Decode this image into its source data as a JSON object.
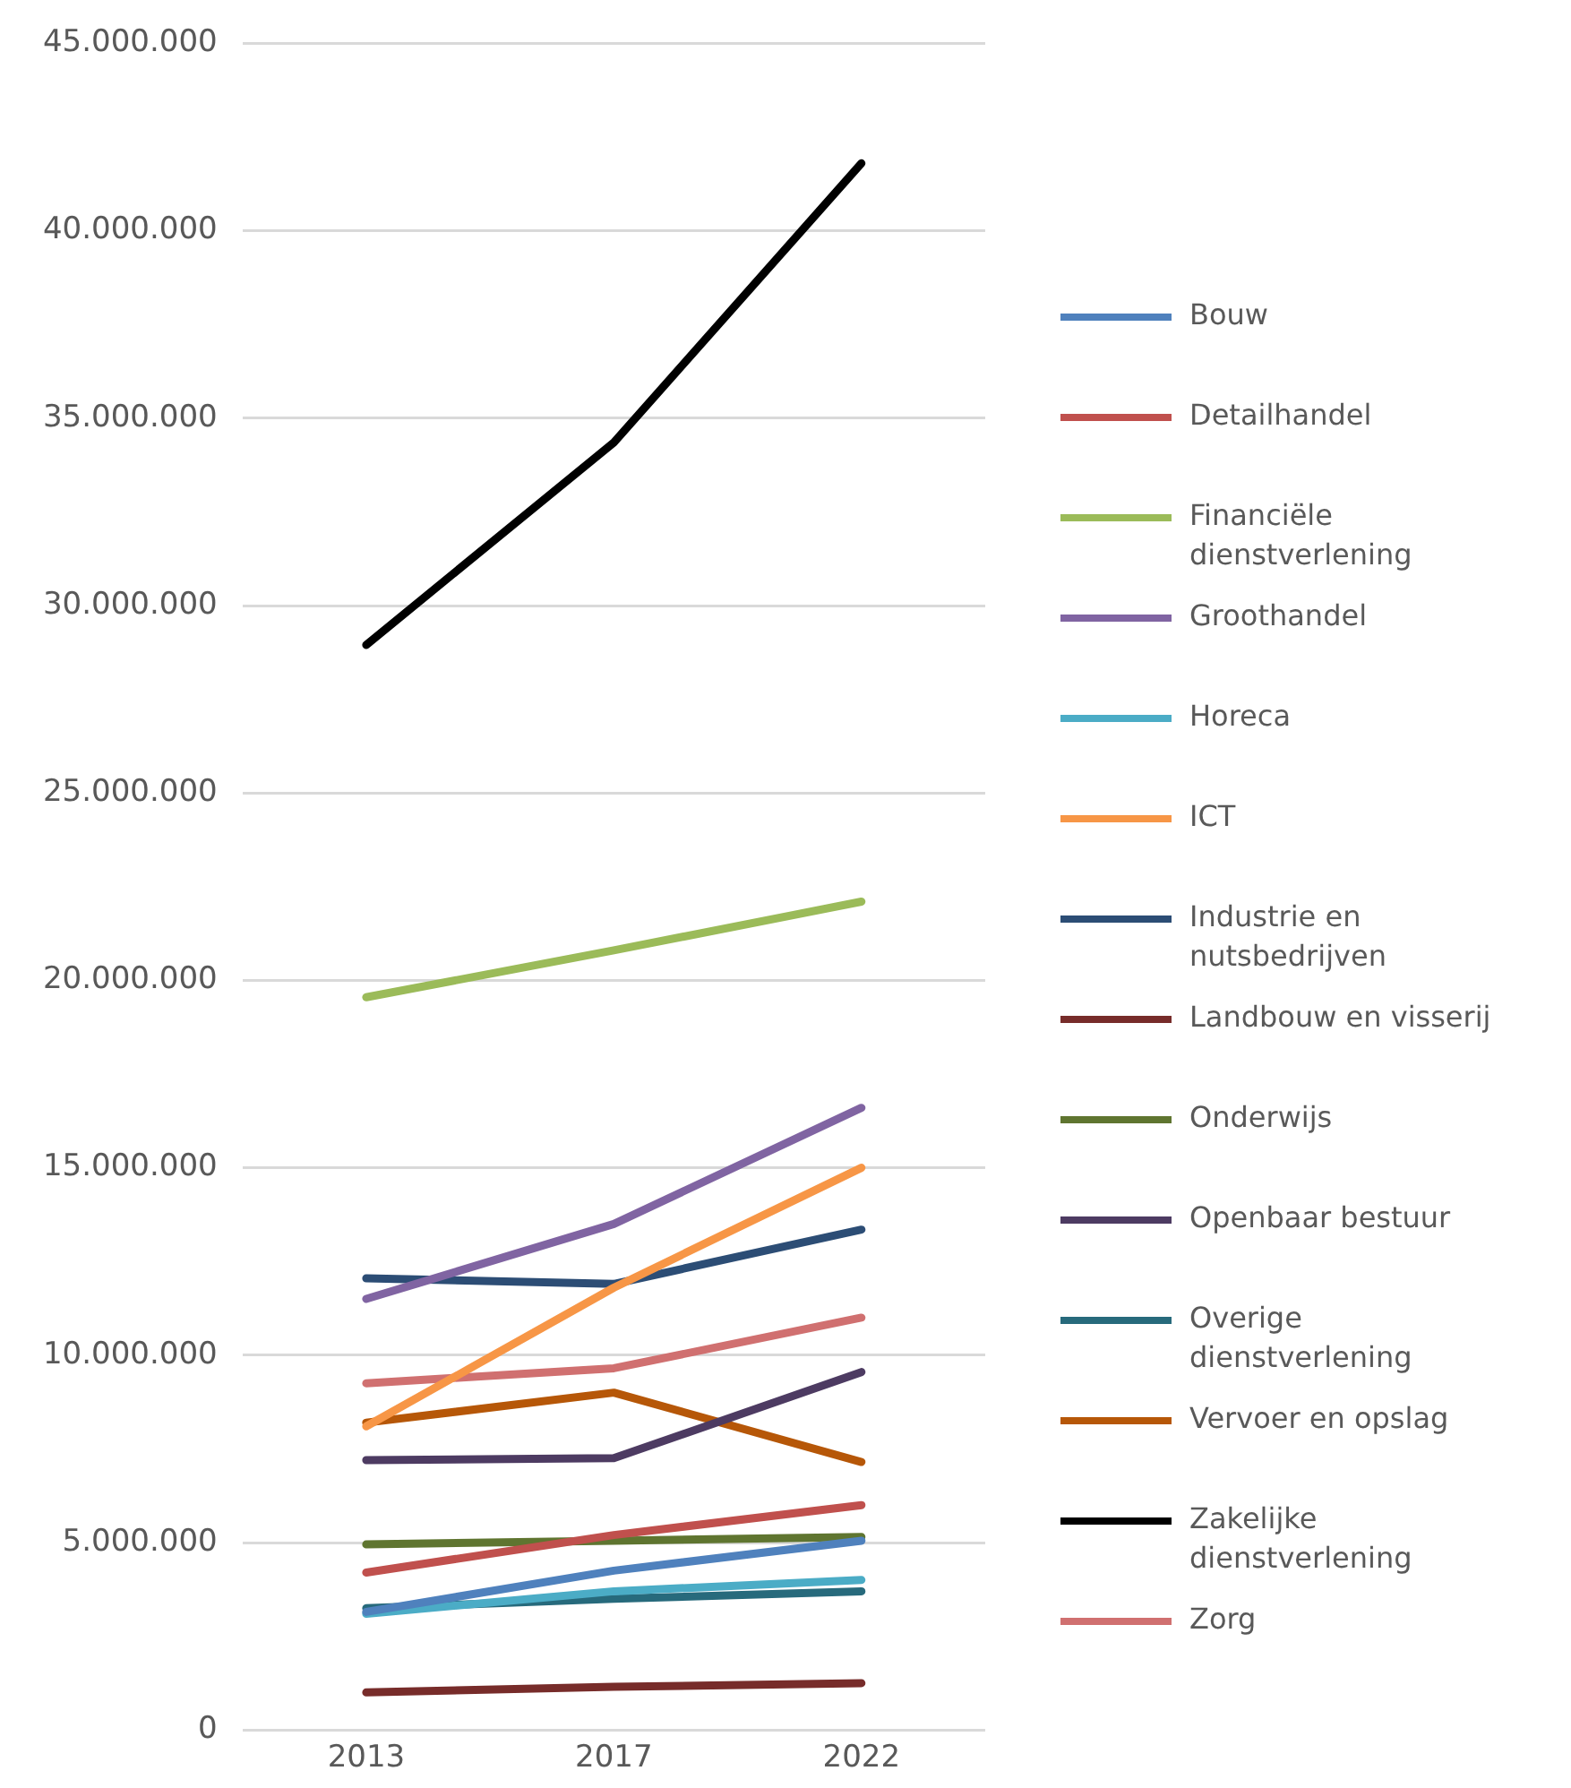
{
  "chart_data": {
    "type": "line",
    "categories": [
      "2013",
      "2017",
      "2022"
    ],
    "ylim": [
      0,
      45000000
    ],
    "yticks": [
      {
        "value": 0,
        "label": "0"
      },
      {
        "value": 5000000,
        "label": "5.000.000"
      },
      {
        "value": 10000000,
        "label": "10.000.000"
      },
      {
        "value": 15000000,
        "label": "15.000.000"
      },
      {
        "value": 20000000,
        "label": "20.000.000"
      },
      {
        "value": 25000000,
        "label": "25.000.000"
      },
      {
        "value": 30000000,
        "label": "30.000.000"
      },
      {
        "value": 35000000,
        "label": "35.000.000"
      },
      {
        "value": 40000000,
        "label": "40.000.000"
      },
      {
        "value": 45000000,
        "label": "45.000.000"
      }
    ],
    "grid": "y",
    "legend": "right",
    "marker": "none",
    "line_style": "solid",
    "series": [
      {
        "name": "Bouw",
        "color": "#4f81bd",
        "values": [
          3150000,
          4250000,
          5050000
        ]
      },
      {
        "name": "Detailhandel",
        "color": "#c0504d",
        "values": [
          4200000,
          5200000,
          6000000
        ]
      },
      {
        "name": "Financiële dienstverlening",
        "color": "#9bbb59",
        "values": [
          19550000,
          20800000,
          22100000
        ]
      },
      {
        "name": "Groothandel",
        "color": "#8064a2",
        "values": [
          11500000,
          13500000,
          16600000
        ]
      },
      {
        "name": "Horeca",
        "color": "#4bacc6",
        "values": [
          3100000,
          3700000,
          4000000
        ]
      },
      {
        "name": "ICT",
        "color": "#f79646",
        "values": [
          8100000,
          11800000,
          15000000
        ]
      },
      {
        "name": "Industrie en nutsbedrijven",
        "color": "#2c4d75",
        "values": [
          12050000,
          11900000,
          13350000
        ]
      },
      {
        "name": "Landbouw en visserij",
        "color": "#772c2a",
        "values": [
          1000000,
          1150000,
          1250000
        ]
      },
      {
        "name": "Onderwijs",
        "color": "#5f7530",
        "values": [
          4950000,
          5050000,
          5150000
        ]
      },
      {
        "name": "Openbaar bestuur",
        "color": "#4d3b62",
        "values": [
          7200000,
          7250000,
          9550000
        ]
      },
      {
        "name": "Overige dienstverlening",
        "color": "#276a7c",
        "values": [
          3250000,
          3500000,
          3700000
        ]
      },
      {
        "name": "Vervoer en opslag",
        "color": "#b65708",
        "values": [
          8200000,
          9000000,
          7150000
        ]
      },
      {
        "name": "Zakelijke dienstverlening",
        "color": "#000000",
        "values": [
          28950000,
          34350000,
          41800000
        ]
      },
      {
        "name": "Zorg",
        "color": "#d07070",
        "values": [
          9250000,
          9650000,
          11000000
        ]
      }
    ]
  }
}
